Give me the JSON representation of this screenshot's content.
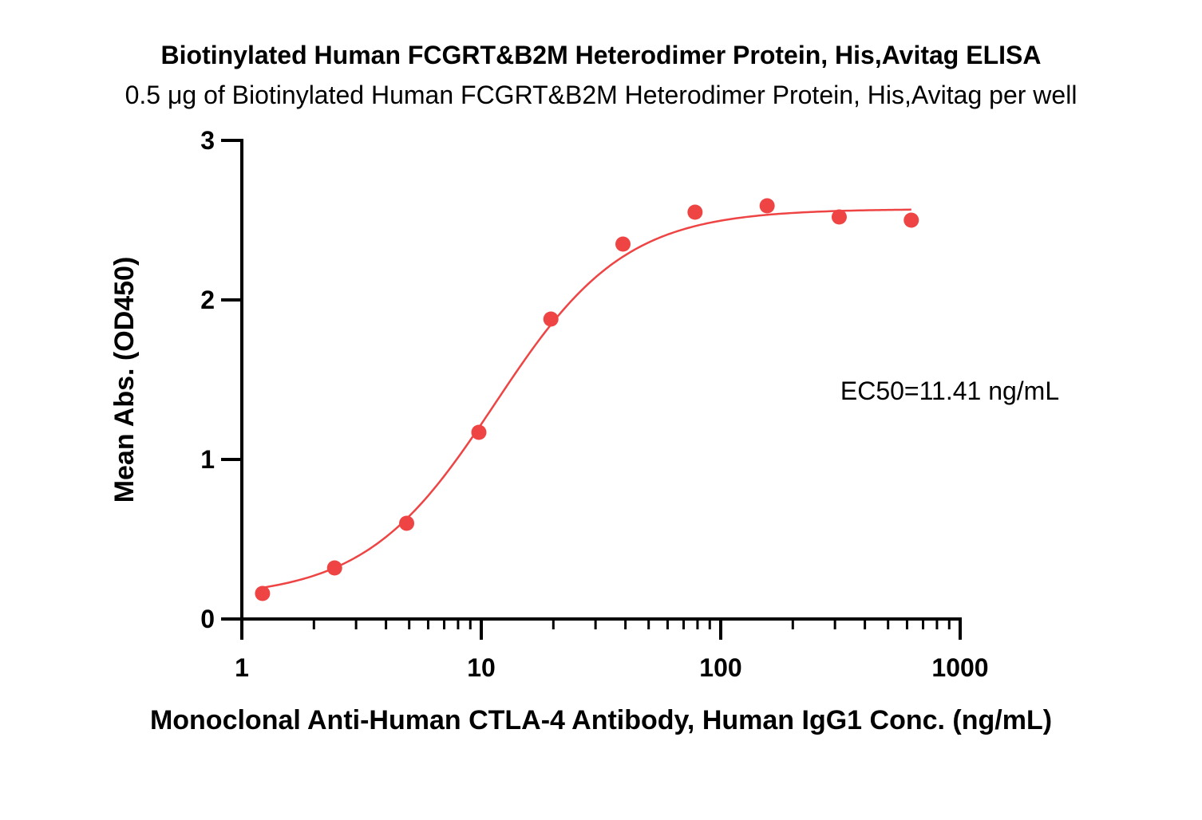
{
  "chart_data": {
    "type": "scatter",
    "title": "Biotinylated Human FCGRT&B2M Heterodimer Protein, His,Avitag ELISA",
    "subtitle": "0.5 μg of Biotinylated Human FCGRT&B2M Heterodimer Protein, His,Avitag per well",
    "xlabel": "Monoclonal Anti-Human CTLA-4 Antibody, Human IgG1 Conc. (ng/mL)",
    "ylabel": "Mean Abs. (OD450)",
    "x_scale": "log",
    "xlim": [
      1,
      1000
    ],
    "ylim": [
      0,
      3
    ],
    "x_ticks": [
      {
        "value": 1,
        "label": "1"
      },
      {
        "value": 10,
        "label": "10"
      },
      {
        "value": 100,
        "label": "100"
      },
      {
        "value": 1000,
        "label": "1000"
      }
    ],
    "y_ticks": [
      {
        "value": 0,
        "label": "0"
      },
      {
        "value": 1,
        "label": "1"
      },
      {
        "value": 2,
        "label": "2"
      },
      {
        "value": 3,
        "label": "3"
      }
    ],
    "grid": false,
    "color": "#ef4444",
    "series": [
      {
        "x": [
          1.22,
          2.44,
          4.88,
          9.77,
          19.53,
          39.06,
          78.13,
          156.25,
          312.5,
          625
        ],
        "y": [
          0.16,
          0.32,
          0.6,
          1.17,
          1.88,
          2.35,
          2.55,
          2.59,
          2.52,
          2.5
        ]
      }
    ],
    "fit": {
      "model": "4PL",
      "bottom": 0.13,
      "top": 2.57,
      "ec50": 11.41,
      "hill": 1.6
    },
    "annotations": [
      {
        "text": "EC50=11.41 ng/mL"
      }
    ]
  }
}
